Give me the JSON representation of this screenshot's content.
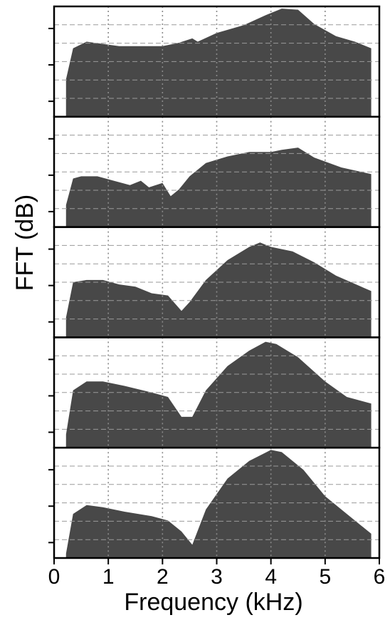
{
  "chart_data": {
    "type": "area",
    "xlabel": "Frequency (kHz)",
    "ylabel": "FFT (dB)",
    "xlim": [
      0,
      6
    ],
    "ylim": [
      0,
      1
    ],
    "x_ticks": [
      "0",
      "1",
      "2",
      "3",
      "4",
      "5",
      "6"
    ],
    "vertical_grid": "dotted at 1, 2, 3, 4, 5 kHz",
    "horizontal_grid": "dashed",
    "fill_color": "#484848",
    "panels": [
      {
        "points": [
          [
            0.22,
            0.34
          ],
          [
            0.35,
            0.62
          ],
          [
            0.6,
            0.68
          ],
          [
            0.9,
            0.66
          ],
          [
            1.2,
            0.64
          ],
          [
            1.6,
            0.64
          ],
          [
            2.0,
            0.64
          ],
          [
            2.3,
            0.67
          ],
          [
            2.55,
            0.71
          ],
          [
            2.65,
            0.68
          ],
          [
            3.0,
            0.76
          ],
          [
            3.5,
            0.83
          ],
          [
            3.9,
            0.92
          ],
          [
            4.2,
            0.98
          ],
          [
            4.5,
            0.97
          ],
          [
            4.8,
            0.84
          ],
          [
            5.2,
            0.73
          ],
          [
            5.55,
            0.68
          ],
          [
            5.85,
            0.62
          ]
        ]
      },
      {
        "points": [
          [
            0.22,
            0.2
          ],
          [
            0.35,
            0.44
          ],
          [
            0.5,
            0.46
          ],
          [
            0.8,
            0.46
          ],
          [
            1.1,
            0.42
          ],
          [
            1.4,
            0.38
          ],
          [
            1.6,
            0.42
          ],
          [
            1.75,
            0.36
          ],
          [
            2.0,
            0.4
          ],
          [
            2.15,
            0.28
          ],
          [
            2.3,
            0.34
          ],
          [
            2.5,
            0.46
          ],
          [
            2.8,
            0.58
          ],
          [
            3.2,
            0.64
          ],
          [
            3.6,
            0.68
          ],
          [
            4.0,
            0.68
          ],
          [
            4.2,
            0.7
          ],
          [
            4.5,
            0.72
          ],
          [
            4.8,
            0.63
          ],
          [
            5.3,
            0.54
          ],
          [
            5.85,
            0.48
          ]
        ]
      },
      {
        "points": [
          [
            0.22,
            0.18
          ],
          [
            0.35,
            0.5
          ],
          [
            0.6,
            0.52
          ],
          [
            0.9,
            0.52
          ],
          [
            1.2,
            0.48
          ],
          [
            1.5,
            0.46
          ],
          [
            1.8,
            0.4
          ],
          [
            2.1,
            0.38
          ],
          [
            2.35,
            0.24
          ],
          [
            2.5,
            0.32
          ],
          [
            2.8,
            0.52
          ],
          [
            3.2,
            0.7
          ],
          [
            3.6,
            0.82
          ],
          [
            3.8,
            0.86
          ],
          [
            4.0,
            0.82
          ],
          [
            4.4,
            0.78
          ],
          [
            4.8,
            0.68
          ],
          [
            5.2,
            0.56
          ],
          [
            5.85,
            0.42
          ]
        ]
      },
      {
        "points": [
          [
            0.22,
            0.12
          ],
          [
            0.35,
            0.52
          ],
          [
            0.6,
            0.6
          ],
          [
            0.9,
            0.6
          ],
          [
            1.3,
            0.56
          ],
          [
            1.8,
            0.5
          ],
          [
            2.1,
            0.46
          ],
          [
            2.35,
            0.28
          ],
          [
            2.55,
            0.28
          ],
          [
            2.8,
            0.52
          ],
          [
            3.2,
            0.74
          ],
          [
            3.6,
            0.88
          ],
          [
            3.9,
            0.96
          ],
          [
            4.1,
            0.94
          ],
          [
            4.5,
            0.82
          ],
          [
            5.0,
            0.6
          ],
          [
            5.4,
            0.46
          ],
          [
            5.85,
            0.4
          ]
        ]
      },
      {
        "points": [
          [
            0.22,
            0.04
          ],
          [
            0.35,
            0.4
          ],
          [
            0.6,
            0.48
          ],
          [
            0.9,
            0.46
          ],
          [
            1.3,
            0.42
          ],
          [
            1.8,
            0.38
          ],
          [
            2.1,
            0.34
          ],
          [
            2.35,
            0.24
          ],
          [
            2.55,
            0.12
          ],
          [
            2.8,
            0.44
          ],
          [
            3.2,
            0.72
          ],
          [
            3.6,
            0.88
          ],
          [
            4.0,
            0.98
          ],
          [
            4.2,
            0.96
          ],
          [
            4.6,
            0.8
          ],
          [
            5.0,
            0.56
          ],
          [
            5.4,
            0.4
          ],
          [
            5.85,
            0.22
          ]
        ]
      }
    ]
  }
}
